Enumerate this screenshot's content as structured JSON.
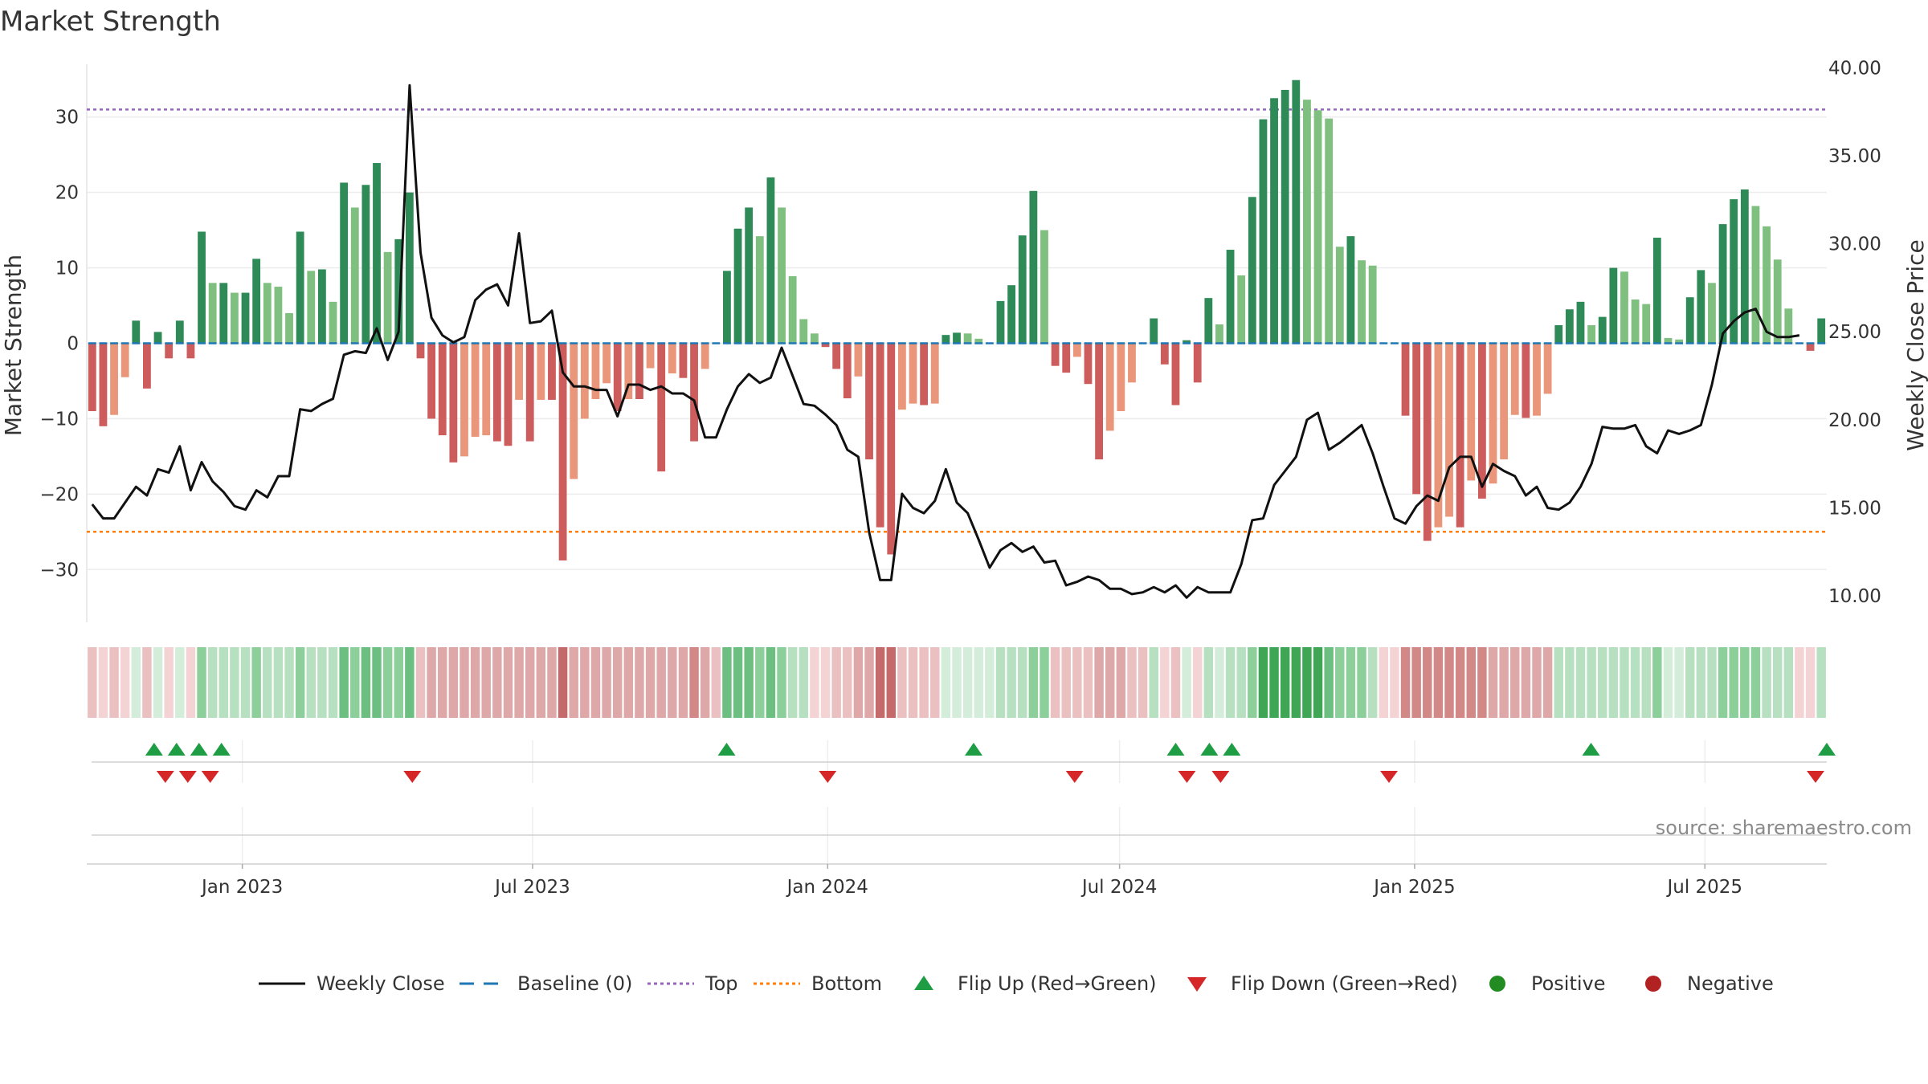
{
  "chart_data": {
    "type": "bar",
    "title": "Market Strength",
    "ylabel_left": "Market Strength",
    "ylabel_right": "Weekly Close Price",
    "source": "source: sharemaestro.com",
    "x_start": "2022-09-26",
    "x_end": "2025-09-15",
    "x_ticks": [
      {
        "date": "2023-01-01",
        "label": "Jan 2023"
      },
      {
        "date": "2023-07-01",
        "label": "Jul 2023"
      },
      {
        "date": "2024-01-01",
        "label": "Jan 2024"
      },
      {
        "date": "2024-07-01",
        "label": "Jul 2024"
      },
      {
        "date": "2025-01-01",
        "label": "Jan 2025"
      },
      {
        "date": "2025-07-01",
        "label": "Jul 2025"
      }
    ],
    "y_left": {
      "min": -37,
      "max": 37,
      "ticks": [
        30,
        20,
        10,
        0,
        -10,
        -20,
        -30
      ],
      "tick_labels": [
        "30",
        "20",
        "10",
        "0",
        "−10",
        "−20",
        "−30"
      ]
    },
    "y_right": {
      "min": 8.5,
      "max": 40.2,
      "ticks": [
        40,
        35,
        30,
        25,
        20,
        15,
        10
      ],
      "tick_labels": [
        "40.00",
        "35.00",
        "30.00",
        "25.00",
        "20.00",
        "15.00",
        "10.00"
      ]
    },
    "top_line": 31,
    "bottom_line": -25,
    "strength": [
      -9,
      -11,
      -9.5,
      -4.5,
      3,
      -6,
      1.5,
      -2,
      3,
      -2,
      14.8,
      8,
      8,
      6.7,
      6.7,
      11.2,
      8,
      7.5,
      4,
      14.8,
      9.6,
      9.8,
      5.5,
      21.3,
      18,
      21,
      23.9,
      12.1,
      13.8,
      20,
      -2,
      -10,
      -12.2,
      -15.8,
      -15,
      -12.4,
      -12.2,
      -13,
      -13.6,
      -7.5,
      -13,
      -7.5,
      -7.5,
      -28.8,
      -18,
      -10,
      -7.4,
      -5.3,
      -9,
      -7.4,
      -7.4,
      -3.3,
      -17,
      -4,
      -4.6,
      -13,
      -3.4,
      0,
      9.6,
      15.2,
      18,
      14.2,
      22,
      18,
      8.9,
      3.2,
      1.3,
      -0.5,
      -3.4,
      -7.3,
      -4.4,
      -15.4,
      -24.4,
      -28,
      -8.8,
      -8,
      -8.2,
      -8,
      1.1,
      1.4,
      1.3,
      0.6,
      0,
      5.6,
      7.7,
      14.3,
      20.2,
      15,
      -3,
      -3.9,
      -1.8,
      -5.4,
      -15.4,
      -11.6,
      -9,
      -5.2,
      0,
      3.3,
      -2.8,
      -8.2,
      0.4,
      -5.2,
      6,
      2.5,
      12.4,
      9,
      19.4,
      29.7,
      32.5,
      33.6,
      34.9,
      32.3,
      30.9,
      29.8,
      12.8,
      14.2,
      11,
      10.3,
      0,
      0,
      -9.6,
      -20,
      -26.2,
      -24.4,
      -23,
      -24.4,
      -18.2,
      -20.6,
      -18.6,
      -15.4,
      -9.5,
      -9.9,
      -9.6,
      -6.7,
      2.4,
      4.5,
      5.5,
      2.4,
      3.5,
      10,
      9.5,
      5.8,
      5.2,
      14,
      0.7,
      0.5,
      6.1,
      9.7,
      8,
      15.8,
      19.1,
      20.4,
      18.2,
      15.5,
      11.1,
      4.6,
      0,
      -1,
      3.3
    ],
    "close": [
      15.2,
      14.4,
      14.4,
      15.3,
      16.2,
      15.7,
      17.2,
      17,
      18.5,
      16,
      17.6,
      16.5,
      15.9,
      15.1,
      14.9,
      16,
      15.6,
      16.8,
      16.8,
      20.6,
      20.5,
      20.9,
      21.2,
      23.7,
      23.9,
      23.8,
      25.2,
      23.4,
      25,
      39,
      29.5,
      25.8,
      24.8,
      24.4,
      24.7,
      26.8,
      27.4,
      27.7,
      26.5,
      30.6,
      25.5,
      25.6,
      26.2,
      22.7,
      21.9,
      21.9,
      21.7,
      21.7,
      20.2,
      22,
      22,
      21.7,
      21.9,
      21.5,
      21.5,
      21.1,
      19,
      19,
      20.6,
      21.9,
      22.6,
      22.1,
      22.4,
      24.1,
      22.5,
      20.9,
      20.8,
      20.3,
      19.7,
      18.3,
      17.9,
      13.6,
      10.9,
      10.9,
      15.8,
      15,
      14.7,
      15.4,
      17.2,
      15.3,
      14.7,
      13.2,
      11.6,
      12.6,
      13,
      12.5,
      12.8,
      11.9,
      12,
      10.6,
      10.8,
      11.1,
      10.9,
      10.4,
      10.4,
      10.1,
      10.2,
      10.5,
      10.2,
      10.6,
      9.9,
      10.5,
      10.2,
      10.2,
      10.2,
      11.8,
      14.3,
      14.4,
      16.3,
      17.1,
      17.9,
      20,
      20.4,
      18.3,
      18.7,
      19.2,
      19.7,
      18.1,
      16.2,
      14.4,
      14.1,
      15.1,
      15.7,
      15.4,
      17.3,
      17.9,
      17.9,
      16.2,
      17.5,
      17.1,
      16.8,
      15.7,
      16.2,
      15,
      14.9,
      15.3,
      16.2,
      17.5,
      19.6,
      19.5,
      19.5,
      19.7,
      18.5,
      18.1,
      19.4,
      19.2,
      19.4,
      19.7,
      22,
      24.9,
      25.6,
      26.1,
      26.3,
      25,
      24.7,
      24.7,
      24.8
    ],
    "regime": [
      "r2",
      "r1",
      "r2",
      "r1",
      "g1",
      "r2",
      "g1",
      "r1",
      "g1",
      "r1",
      "g3",
      "g2",
      "g2",
      "g2",
      "g2",
      "g3",
      "g2",
      "g2",
      "g2",
      "g3",
      "g2",
      "g2",
      "g2",
      "g4",
      "g3",
      "g4",
      "g4",
      "g3",
      "g3",
      "g4",
      "r2",
      "r3",
      "r3",
      "r3",
      "r3",
      "r3",
      "r3",
      "r3",
      "r3",
      "r3",
      "r3",
      "r3",
      "r3",
      "r5",
      "r3",
      "r3",
      "r3",
      "r3",
      "r3",
      "r3",
      "r3",
      "r3",
      "r3",
      "r3",
      "r3",
      "r4",
      "r3",
      "r2",
      "g4",
      "g4",
      "g4",
      "g3",
      "g4",
      "g3",
      "g2",
      "g2",
      "r1",
      "r1",
      "r2",
      "r2",
      "r3",
      "r3",
      "r5",
      "r5",
      "r2",
      "r2",
      "r2",
      "r2",
      "g1",
      "g1",
      "g1",
      "g1",
      "g1",
      "g2",
      "g2",
      "g2",
      "g3",
      "g3",
      "r2",
      "r2",
      "r2",
      "r2",
      "r3",
      "r3",
      "r3",
      "r2",
      "r2",
      "g2",
      "r1",
      "r2",
      "g1",
      "r1",
      "g2",
      "g1",
      "g2",
      "g2",
      "g3",
      "g5",
      "g5",
      "g5",
      "g5",
      "g5",
      "g5",
      "g4",
      "g3",
      "g3",
      "g3",
      "g2",
      "r1",
      "r1",
      "r4",
      "r4",
      "r4",
      "r4",
      "r4",
      "r4",
      "r4",
      "r4",
      "r3",
      "r3",
      "r3",
      "r3",
      "r3",
      "r3",
      "g2",
      "g2",
      "g2",
      "g2",
      "g2",
      "g2",
      "g2",
      "g2",
      "g2",
      "g3",
      "g1",
      "g1",
      "g2",
      "g2",
      "g2",
      "g3",
      "g3",
      "g3",
      "g3",
      "g2",
      "g2",
      "g2",
      "r1",
      "r1",
      "g2"
    ],
    "flip_up_dates": [
      "2022-11-07",
      "2022-11-21",
      "2022-12-05",
      "2022-12-19",
      "2023-10-30",
      "2024-04-01",
      "2024-08-05",
      "2024-08-26",
      "2024-09-09",
      "2025-04-21",
      "2025-09-15"
    ],
    "flip_down_dates": [
      "2022-11-14",
      "2022-11-28",
      "2022-12-12",
      "2023-04-17",
      "2024-01-01",
      "2024-06-03",
      "2024-08-12",
      "2024-09-02",
      "2024-12-16",
      "2025-09-08"
    ],
    "colors": {
      "bar_green_dark": "#2e8b57",
      "bar_green_light": "#7fbf7f",
      "bar_red_dark": "#cd5c5c",
      "bar_red_light": "#e9967a",
      "close_line": "#111111",
      "baseline": "#1f77b4",
      "top_line": "#9467bd",
      "bottom_line": "#ff7f0e",
      "flip_up": "#1f9d45",
      "flip_down": "#d62728",
      "positive": "#228b22",
      "negative": "#b22222"
    },
    "regime_colors": {
      "g1": "#d4edda",
      "g2": "#b7e0c0",
      "g3": "#8ccf9b",
      "g4": "#6cbf80",
      "g5": "#3ea655",
      "r1": "#f3d3d3",
      "r2": "#eac0c0",
      "r3": "#dea8a8",
      "r4": "#d38888",
      "r5": "#c56a6a"
    },
    "legend": {
      "items": [
        {
          "key": "close",
          "label": "Weekly Close"
        },
        {
          "key": "baseline",
          "label": "Baseline (0)"
        },
        {
          "key": "top",
          "label": "Top"
        },
        {
          "key": "bottom",
          "label": "Bottom"
        },
        {
          "key": "flip_up",
          "label": "Flip Up (Red→Green)"
        },
        {
          "key": "flip_down",
          "label": "Flip Down (Green→Red)"
        },
        {
          "key": "positive",
          "label": "Positive"
        },
        {
          "key": "negative",
          "label": "Negative"
        }
      ]
    }
  }
}
